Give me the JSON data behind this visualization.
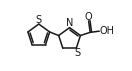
{
  "bg_color": "#ffffff",
  "line_color": "#1a1a1a",
  "line_width": 1.1,
  "figsize": [
    1.32,
    0.71
  ],
  "dpi": 100,
  "xlim": [
    0.0,
    1.0
  ],
  "ylim": [
    0.05,
    0.95
  ]
}
